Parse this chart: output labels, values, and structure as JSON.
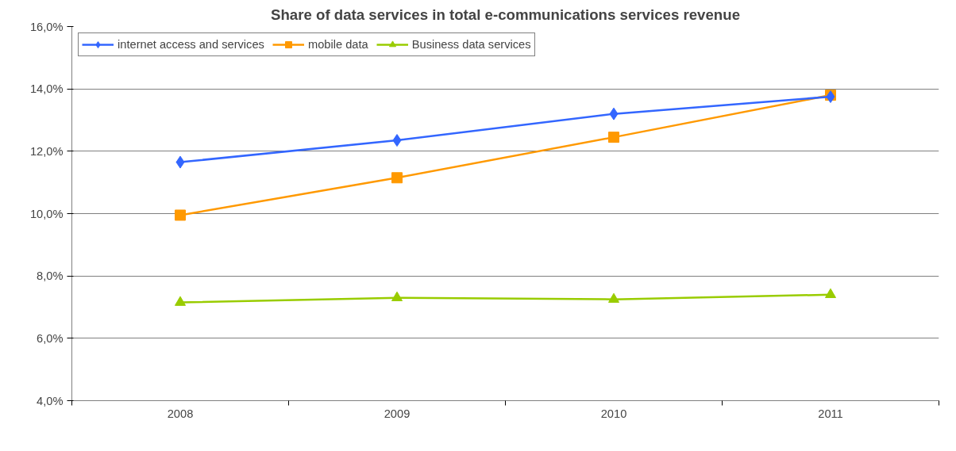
{
  "chart_data": {
    "type": "line",
    "title": "Share of data services in total e-communications services revenue",
    "categories": [
      "2008",
      "2009",
      "2010",
      "2011"
    ],
    "series": [
      {
        "name": "internet access and services",
        "color": "#3366ff",
        "marker": "diamond",
        "values": [
          11.65,
          12.35,
          13.2,
          13.75
        ]
      },
      {
        "name": "mobile data",
        "color": "#ff9900",
        "marker": "square",
        "values": [
          9.95,
          11.15,
          12.45,
          13.8
        ]
      },
      {
        "name": "Business data services",
        "color": "#99cc00",
        "marker": "triangle",
        "values": [
          7.15,
          7.3,
          7.25,
          7.4
        ]
      }
    ],
    "ylim": [
      4,
      16
    ],
    "yticks": [
      {
        "value": 4,
        "label": "4,0%"
      },
      {
        "value": 6,
        "label": "6,0%"
      },
      {
        "value": 8,
        "label": "8,0%"
      },
      {
        "value": 10,
        "label": "10,0%"
      },
      {
        "value": 12,
        "label": "12,0%"
      },
      {
        "value": 14,
        "label": "14,0%"
      },
      {
        "value": 16,
        "label": "16,0%"
      }
    ],
    "grid": "y",
    "legend": "top left",
    "line_style": "solid"
  }
}
